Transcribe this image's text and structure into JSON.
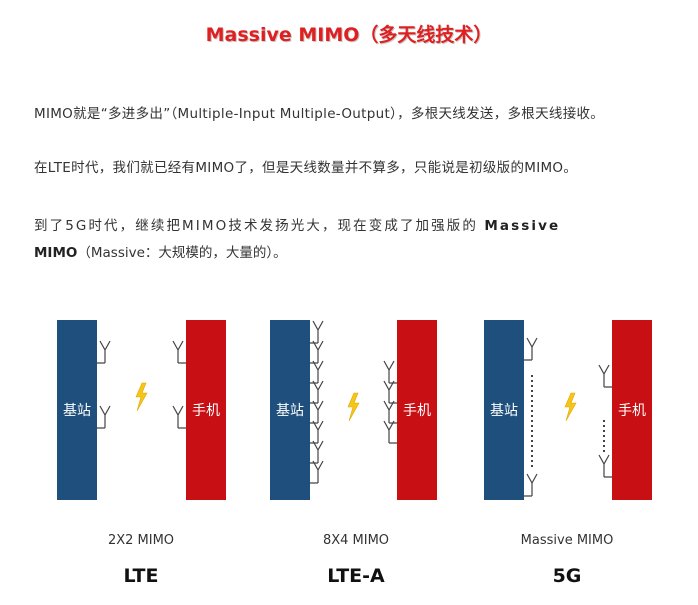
{
  "title": "Massive MIMO（多天线技术）",
  "paragraphs": {
    "p1": "MIMO就是“多进多出”（Multiple-Input Multiple-Output），多根天线发送，多根天线接收。",
    "p2": "在LTE时代，我们就已经有MIMO了，但是天线数量并不算多，只能说是初级版的MIMO。",
    "p3_line1_pre": "到了5G时代，继续把MIMO技术发扬光大，现在变成了加强版的",
    "p3_bold1": "Massive",
    "p3_bold2": "MIMO",
    "p3_line2_post": "（Massive：大规模的，大量的）。"
  },
  "diagram": {
    "base_station_label": "基站",
    "phone_label": "手机",
    "colors": {
      "base_station": "#1e4f7d",
      "phone": "#c80f14",
      "lightning": "#f5c518"
    },
    "groups": [
      {
        "caption": "2X2 MIMO",
        "tech": "LTE"
      },
      {
        "caption": "8X4 MIMO",
        "tech": "LTE-A"
      },
      {
        "caption": "Massive MIMO",
        "tech": "5G"
      }
    ]
  }
}
